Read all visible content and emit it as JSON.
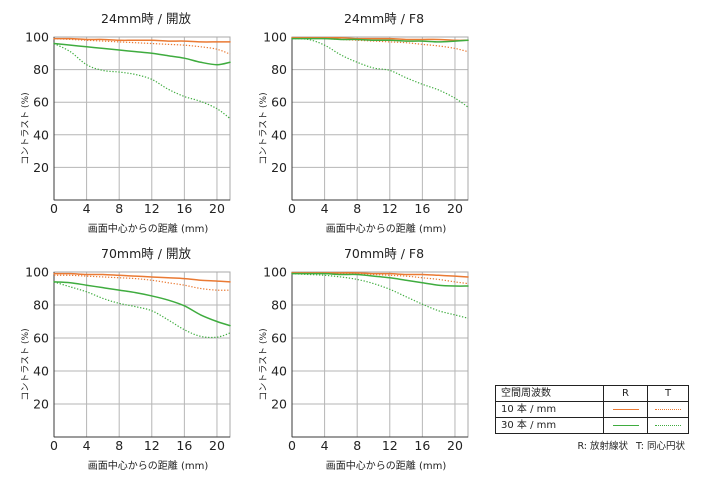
{
  "chart_data": [
    {
      "type": "line",
      "title": "24mm時 / 開放",
      "xlabel": "画面中心からの距離 (mm)",
      "ylabel": "コントラスト (%)",
      "xlim": [
        0,
        21.6
      ],
      "ylim": [
        0,
        100
      ],
      "xticks": [
        0,
        4,
        8,
        12,
        16,
        20
      ],
      "yticks": [
        20,
        40,
        60,
        80,
        100
      ],
      "grid": true,
      "x": [
        0,
        2,
        4,
        6,
        8,
        10,
        12,
        14,
        16,
        18,
        20,
        21.6
      ],
      "series": [
        {
          "color": "#ea7a34",
          "dotted": false,
          "y": [
            99,
            99,
            98.5,
            98.5,
            98,
            98,
            98,
            97.5,
            97.5,
            97,
            97,
            97
          ]
        },
        {
          "color": "#ea7a34",
          "dotted": true,
          "y": [
            99,
            98.5,
            98,
            97.5,
            97,
            96.5,
            96,
            95.5,
            95,
            94,
            92.5,
            89.5
          ]
        },
        {
          "color": "#3fac3f",
          "dotted": false,
          "y": [
            96,
            95,
            94,
            93,
            92,
            91,
            90,
            88.5,
            87,
            84.5,
            83,
            84.5
          ]
        },
        {
          "color": "#3fac3f",
          "dotted": true,
          "y": [
            96,
            91,
            83,
            79.5,
            78.5,
            77,
            74,
            68,
            63.5,
            60.5,
            56,
            50
          ]
        }
      ]
    },
    {
      "type": "line",
      "title": "24mm時 / F8",
      "xlabel": "画面中心からの距離 (mm)",
      "ylabel": "コントラスト (%)",
      "xlim": [
        0,
        21.6
      ],
      "ylim": [
        0,
        100
      ],
      "xticks": [
        0,
        4,
        8,
        12,
        16,
        20
      ],
      "yticks": [
        20,
        40,
        60,
        80,
        100
      ],
      "grid": true,
      "x": [
        0,
        2,
        4,
        6,
        8,
        10,
        12,
        14,
        16,
        18,
        20,
        21.6
      ],
      "series": [
        {
          "color": "#ea7a34",
          "dotted": false,
          "y": [
            99.5,
            99.5,
            99.5,
            99.5,
            99,
            99,
            99,
            98.5,
            98.5,
            98.5,
            98,
            98
          ]
        },
        {
          "color": "#ea7a34",
          "dotted": true,
          "y": [
            99.5,
            99.5,
            99,
            98.5,
            98,
            97.5,
            97,
            96.5,
            95.5,
            94.5,
            93,
            91
          ]
        },
        {
          "color": "#3fac3f",
          "dotted": false,
          "y": [
            99,
            99,
            99,
            98.5,
            98.5,
            98,
            98,
            97.5,
            97.5,
            97,
            97.5,
            98
          ]
        },
        {
          "color": "#3fac3f",
          "dotted": true,
          "y": [
            99,
            98.5,
            95,
            89,
            84.5,
            81,
            79.5,
            75,
            71,
            67.5,
            62.5,
            57
          ]
        }
      ]
    },
    {
      "type": "line",
      "title": "70mm時 / 開放",
      "xlabel": "画面中心からの距離 (mm)",
      "ylabel": "コントラスト (%)",
      "xlim": [
        0,
        21.6
      ],
      "ylim": [
        0,
        100
      ],
      "xticks": [
        0,
        4,
        8,
        12,
        16,
        20
      ],
      "yticks": [
        20,
        40,
        60,
        80,
        100
      ],
      "grid": true,
      "x": [
        0,
        2,
        4,
        6,
        8,
        10,
        12,
        14,
        16,
        18,
        20,
        21.6
      ],
      "series": [
        {
          "color": "#ea7a34",
          "dotted": false,
          "y": [
            99,
            99,
            98.5,
            98.5,
            98,
            97.5,
            97,
            96.5,
            96,
            95,
            94.5,
            94
          ]
        },
        {
          "color": "#ea7a34",
          "dotted": true,
          "y": [
            98,
            98,
            97.5,
            97,
            96.5,
            96,
            95,
            93.5,
            92,
            90,
            89,
            89
          ]
        },
        {
          "color": "#3fac3f",
          "dotted": false,
          "y": [
            94,
            93.5,
            92,
            90.5,
            89,
            87.5,
            85.5,
            83,
            79.5,
            74,
            70,
            67.5
          ]
        },
        {
          "color": "#3fac3f",
          "dotted": true,
          "y": [
            94,
            91,
            88,
            84,
            81,
            79,
            76.5,
            71,
            65,
            61,
            60.5,
            63
          ]
        }
      ]
    },
    {
      "type": "line",
      "title": "70mm時 / F8",
      "xlabel": "画面中心からの距離 (mm)",
      "ylabel": "コントラスト (%)",
      "xlim": [
        0,
        21.6
      ],
      "ylim": [
        0,
        100
      ],
      "xticks": [
        0,
        4,
        8,
        12,
        16,
        20
      ],
      "yticks": [
        20,
        40,
        60,
        80,
        100
      ],
      "grid": true,
      "x": [
        0,
        2,
        4,
        6,
        8,
        10,
        12,
        14,
        16,
        18,
        20,
        21.6
      ],
      "series": [
        {
          "color": "#ea7a34",
          "dotted": false,
          "y": [
            99.5,
            99.5,
            99.5,
            99.5,
            99.5,
            99,
            99,
            98.5,
            98.5,
            98,
            97.5,
            97
          ]
        },
        {
          "color": "#ea7a34",
          "dotted": true,
          "y": [
            99.5,
            99.5,
            99.5,
            99,
            99,
            98.5,
            98,
            97.5,
            96.5,
            95.5,
            94,
            93
          ]
        },
        {
          "color": "#3fac3f",
          "dotted": false,
          "y": [
            99,
            99,
            99,
            98.5,
            98.5,
            97.5,
            96.5,
            95,
            93.5,
            92,
            91.5,
            91.5
          ]
        },
        {
          "color": "#3fac3f",
          "dotted": true,
          "y": [
            99,
            98.5,
            98,
            97,
            95.5,
            93,
            89.5,
            85,
            80.5,
            76.5,
            74,
            72
          ]
        }
      ]
    }
  ],
  "legend": {
    "placement": "bottom-right",
    "title": "空間周波数",
    "col_r": "R",
    "col_t": "T",
    "rows": [
      {
        "label": "10 本 / mm",
        "color": "#ea7a34"
      },
      {
        "label": "30 本 / mm",
        "color": "#3fac3f"
      }
    ],
    "note_r": "R: 放射線状",
    "note_t": "T: 同心円状"
  }
}
